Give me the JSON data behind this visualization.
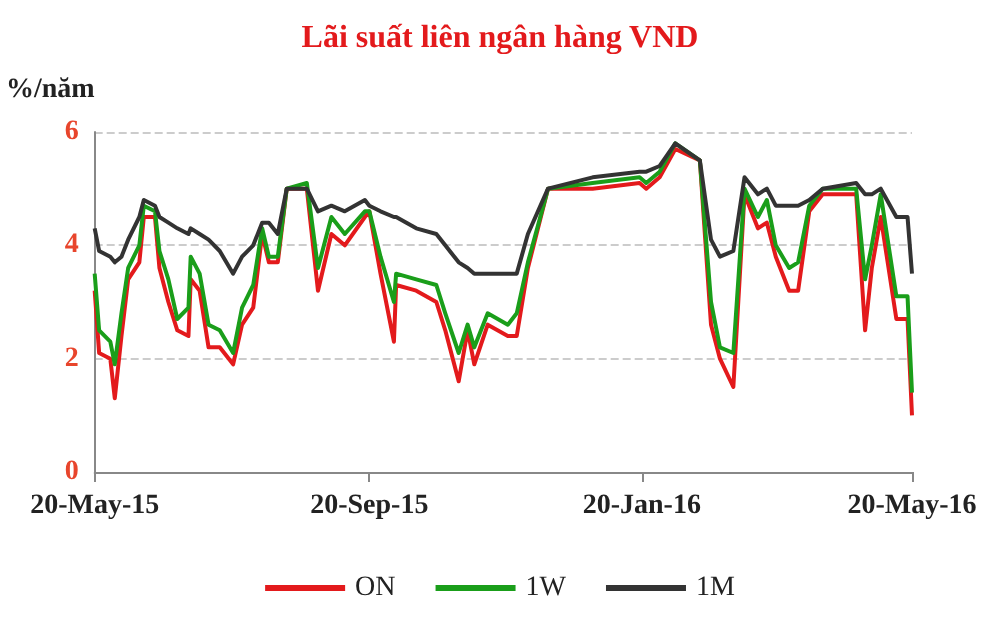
{
  "chart_data": {
    "type": "line",
    "title": "Lãi suất liên ngân hàng VND",
    "ylabel": "%/năm",
    "x": [
      "2015-05-20",
      "2015-05-22",
      "2015-05-27",
      "2015-05-29",
      "2015-06-01",
      "2015-06-04",
      "2015-06-09",
      "2015-06-11",
      "2015-06-16",
      "2015-06-18",
      "2015-06-22",
      "2015-06-26",
      "2015-07-01",
      "2015-07-02",
      "2015-07-06",
      "2015-07-10",
      "2015-07-15",
      "2015-07-21",
      "2015-07-25",
      "2015-07-30",
      "2015-08-03",
      "2015-08-06",
      "2015-08-10",
      "2015-08-14",
      "2015-08-23",
      "2015-08-28",
      "2015-09-03",
      "2015-09-09",
      "2015-09-18",
      "2015-09-20",
      "2015-09-25",
      "2015-10-01",
      "2015-10-02",
      "2015-10-11",
      "2015-10-20",
      "2015-10-24",
      "2015-10-30",
      "2015-11-03",
      "2015-11-06",
      "2015-11-12",
      "2015-11-21",
      "2015-11-25",
      "2015-11-30",
      "2015-12-09",
      "2015-12-29",
      "2016-01-19",
      "2016-01-22",
      "2016-01-28",
      "2016-02-04",
      "2016-02-15",
      "2016-02-20",
      "2016-02-24",
      "2016-03-01",
      "2016-03-06",
      "2016-03-12",
      "2016-03-16",
      "2016-03-20",
      "2016-03-26",
      "2016-03-30",
      "2016-04-04",
      "2016-04-10",
      "2016-04-25",
      "2016-04-29",
      "2016-05-02",
      "2016-05-06",
      "2016-05-13",
      "2016-05-18",
      "2016-05-20"
    ],
    "series": [
      {
        "name": "ON",
        "color": "#e31a1c",
        "values": [
          3.2,
          2.1,
          2.0,
          1.3,
          2.4,
          3.4,
          3.7,
          4.5,
          4.5,
          3.6,
          3.0,
          2.5,
          2.4,
          3.4,
          3.2,
          2.2,
          2.2,
          1.9,
          2.6,
          2.9,
          4.2,
          3.7,
          3.7,
          5.0,
          5.0,
          3.2,
          4.2,
          4.0,
          4.5,
          4.6,
          3.5,
          2.3,
          3.3,
          3.2,
          3.0,
          2.5,
          1.6,
          2.5,
          1.9,
          2.6,
          2.4,
          2.4,
          3.6,
          5.0,
          5.0,
          5.1,
          5.0,
          5.2,
          5.7,
          5.5,
          2.6,
          2.0,
          1.5,
          4.9,
          4.3,
          4.4,
          3.8,
          3.2,
          3.2,
          4.6,
          4.9,
          4.9,
          2.5,
          3.6,
          4.5,
          2.7,
          2.7,
          1.0
        ]
      },
      {
        "name": "1W",
        "color": "#1a9e1a",
        "values": [
          3.5,
          2.5,
          2.3,
          1.9,
          2.8,
          3.6,
          4.0,
          4.7,
          4.6,
          3.9,
          3.4,
          2.7,
          2.9,
          3.8,
          3.5,
          2.6,
          2.5,
          2.1,
          2.9,
          3.3,
          4.3,
          3.8,
          3.8,
          5.0,
          5.1,
          3.6,
          4.5,
          4.2,
          4.6,
          4.6,
          3.8,
          3.0,
          3.5,
          3.4,
          3.3,
          2.8,
          2.1,
          2.6,
          2.2,
          2.8,
          2.6,
          2.8,
          3.7,
          5.0,
          5.1,
          5.2,
          5.1,
          5.3,
          5.8,
          5.5,
          3.0,
          2.2,
          2.1,
          5.0,
          4.5,
          4.8,
          4.0,
          3.6,
          3.7,
          4.7,
          5.0,
          5.0,
          3.4,
          4.0,
          4.9,
          3.1,
          3.1,
          1.4
        ]
      },
      {
        "name": "1M",
        "color": "#333333",
        "values": [
          4.3,
          3.9,
          3.8,
          3.7,
          3.8,
          4.1,
          4.5,
          4.8,
          4.7,
          4.5,
          4.4,
          4.3,
          4.2,
          4.3,
          4.2,
          4.1,
          3.9,
          3.5,
          3.8,
          4.0,
          4.4,
          4.4,
          4.2,
          5.0,
          5.0,
          4.6,
          4.7,
          4.6,
          4.8,
          4.7,
          4.6,
          4.5,
          4.5,
          4.3,
          4.2,
          4.0,
          3.7,
          3.6,
          3.5,
          3.5,
          3.5,
          3.5,
          4.2,
          5.0,
          5.2,
          5.3,
          5.3,
          5.4,
          5.8,
          5.5,
          4.1,
          3.8,
          3.9,
          5.2,
          4.9,
          5.0,
          4.7,
          4.7,
          4.7,
          4.8,
          5.0,
          5.1,
          4.9,
          4.9,
          5.0,
          4.5,
          4.5,
          3.5
        ]
      }
    ],
    "xlim": [
      "2015-05-20",
      "2016-05-20"
    ],
    "xticks": [
      {
        "value": "2015-05-20",
        "label": "20-May-15"
      },
      {
        "value": "2015-09-20",
        "label": "20-Sep-15"
      },
      {
        "value": "2016-01-20",
        "label": "20-Jan-16"
      },
      {
        "value": "2016-05-20",
        "label": "20-May-16"
      }
    ],
    "ylim": [
      0,
      6
    ],
    "yticks": [
      0,
      2,
      4,
      6
    ],
    "grid": "y",
    "legend": "bottom",
    "marker": "none",
    "line_style": "solid"
  }
}
